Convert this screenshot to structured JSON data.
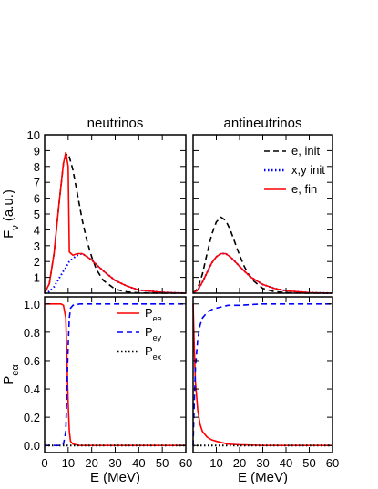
{
  "chart_data": [
    {
      "type": "line",
      "title": "neutrinos",
      "ylabel": "F",
      "ylabel_sub": "ν",
      "ylabel_rest": " (a.u.)",
      "x": [
        0,
        2,
        4,
        6,
        8,
        9,
        10,
        10.5,
        12,
        14,
        16,
        18,
        20,
        22,
        25,
        30,
        35,
        40,
        50,
        60
      ],
      "xlim": [
        0,
        60
      ],
      "ylim": [
        0,
        10
      ],
      "xticks": [
        0,
        10,
        20,
        30,
        40,
        50,
        60
      ],
      "xtick_labels": false,
      "yticks": [
        1,
        2,
        3,
        4,
        5,
        6,
        7,
        8,
        9,
        10
      ],
      "ytick_labels": true,
      "series": [
        {
          "name": "e, init",
          "color": "#000000",
          "dash": "dashed",
          "values": [
            0,
            0.6,
            2.5,
            5.5,
            8.2,
            8.7,
            8.8,
            8.6,
            7.8,
            6.2,
            4.6,
            3.3,
            2.3,
            1.5,
            0.8,
            0.25,
            0.08,
            0.02,
            0,
            0
          ]
        },
        {
          "name": "x,y init",
          "color": "#0000ff",
          "dash": "dotted",
          "values": [
            0,
            0.1,
            0.4,
            0.9,
            1.4,
            1.6,
            1.9,
            2.0,
            2.2,
            2.4,
            2.5,
            2.3,
            2.1,
            1.8,
            1.4,
            0.8,
            0.45,
            0.2,
            0.05,
            0
          ]
        },
        {
          "name": "e, fin",
          "color": "#ff0000",
          "dash": "solid",
          "values": [
            0,
            0.6,
            2.5,
            5.5,
            8.2,
            8.9,
            8.0,
            2.6,
            2.4,
            2.5,
            2.5,
            2.3,
            2.1,
            1.8,
            1.4,
            0.8,
            0.45,
            0.2,
            0.05,
            0
          ]
        }
      ]
    },
    {
      "type": "line",
      "title": "antineutrinos",
      "legend": "upper right",
      "x": [
        0,
        2,
        4,
        6,
        8,
        10,
        12,
        14,
        16,
        18,
        20,
        22,
        25,
        30,
        35,
        40,
        50,
        60
      ],
      "xlim": [
        0,
        60
      ],
      "ylim": [
        0,
        10
      ],
      "xticks": [
        0,
        10,
        20,
        30,
        40,
        50,
        60
      ],
      "xtick_labels": false,
      "yticks": [
        1,
        2,
        3,
        4,
        5,
        6,
        7,
        8,
        9,
        10
      ],
      "ytick_labels": false,
      "series": [
        {
          "name": "e, init",
          "color": "#000000",
          "dash": "dashed",
          "values": [
            0,
            0.3,
            1.2,
            2.5,
            3.7,
            4.5,
            4.8,
            4.6,
            4.0,
            3.2,
            2.4,
            1.7,
            0.9,
            0.3,
            0.1,
            0.03,
            0,
            0
          ]
        },
        {
          "name": "x,y init",
          "color": "#0000ff",
          "dash": "dotted",
          "values": [
            0,
            0.2,
            0.7,
            1.3,
            1.9,
            2.3,
            2.5,
            2.5,
            2.3,
            2.0,
            1.7,
            1.4,
            1.0,
            0.55,
            0.3,
            0.15,
            0.03,
            0
          ]
        },
        {
          "name": "e, fin",
          "color": "#ff0000",
          "dash": "solid",
          "values": [
            0,
            0.2,
            0.7,
            1.3,
            1.9,
            2.3,
            2.5,
            2.5,
            2.3,
            2.0,
            1.7,
            1.4,
            1.0,
            0.55,
            0.3,
            0.15,
            0.03,
            0
          ]
        }
      ]
    },
    {
      "type": "line",
      "xlabel": "E (MeV)",
      "ylabel": "P",
      "ylabel_sub": "eα",
      "legend": "upper right",
      "x": [
        0,
        2,
        4,
        6,
        7,
        8,
        9,
        9.5,
        10,
        10.5,
        11,
        12,
        15,
        20,
        30,
        40,
        50,
        60
      ],
      "xlim": [
        0,
        60
      ],
      "ylim": [
        -0.05,
        1.05
      ],
      "xticks": [
        0,
        10,
        20,
        30,
        40,
        50,
        60
      ],
      "xtick_labels": true,
      "yticks": [
        {
          "value": 0,
          "label": "0.0"
        },
        {
          "value": 0.2,
          "label": "0.2"
        },
        {
          "value": 0.4,
          "label": "0.4"
        },
        {
          "value": 0.6,
          "label": "0.6"
        },
        {
          "value": 0.8,
          "label": "0.8"
        },
        {
          "value": 1,
          "label": "1.0"
        }
      ],
      "ytick_labels": true,
      "series": [
        {
          "name": "P",
          "name_sub": "ee",
          "color": "#ff0000",
          "dash": "solid",
          "values": [
            1,
            1,
            1,
            1,
            1,
            0.99,
            0.9,
            0.6,
            0.3,
            0.1,
            0.03,
            0.01,
            0,
            0,
            0,
            0,
            0,
            0
          ]
        },
        {
          "name": "P",
          "name_sub": "ey",
          "color": "#0000ff",
          "dash": "dashed",
          "values": [
            0,
            0,
            0,
            0,
            0,
            0.01,
            0.1,
            0.4,
            0.7,
            0.9,
            0.97,
            0.99,
            1,
            1,
            1,
            1,
            1,
            1
          ]
        },
        {
          "name": "P",
          "name_sub": "ex",
          "color": "#000000",
          "dash": "dotted",
          "values": [
            0,
            0,
            0,
            0,
            0,
            0,
            0,
            0,
            0,
            0,
            0,
            0,
            0,
            0,
            0,
            0,
            0,
            0
          ]
        }
      ]
    },
    {
      "type": "line",
      "xlabel": "E (MeV)",
      "x": [
        0,
        0.5,
        1,
        2,
        3,
        4,
        6,
        8,
        10,
        15,
        20,
        30,
        40,
        60
      ],
      "xlim": [
        0,
        60
      ],
      "ylim": [
        -0.05,
        1.05
      ],
      "xticks": [
        10,
        20,
        30,
        40,
        50,
        60
      ],
      "xtick_labels": true,
      "yticks": [
        0,
        0.2,
        0.4,
        0.6,
        0.8,
        1
      ],
      "ytick_labels": false,
      "series": [
        {
          "name": "P",
          "name_sub": "ee",
          "color": "#ff0000",
          "dash": "solid",
          "values": [
            1,
            0.7,
            0.45,
            0.25,
            0.15,
            0.1,
            0.06,
            0.04,
            0.03,
            0.01,
            0.005,
            0,
            0,
            0
          ]
        },
        {
          "name": "P",
          "name_sub": "ey",
          "color": "#0000ff",
          "dash": "dashed",
          "values": [
            0,
            0.3,
            0.55,
            0.75,
            0.85,
            0.9,
            0.94,
            0.96,
            0.97,
            0.99,
            0.99,
            1,
            1,
            1
          ]
        },
        {
          "name": "P",
          "name_sub": "ex",
          "color": "#000000",
          "dash": "dotted",
          "values": [
            0,
            0,
            0,
            0,
            0,
            0,
            0,
            0,
            0,
            0,
            0,
            0,
            0,
            0
          ]
        }
      ]
    }
  ]
}
